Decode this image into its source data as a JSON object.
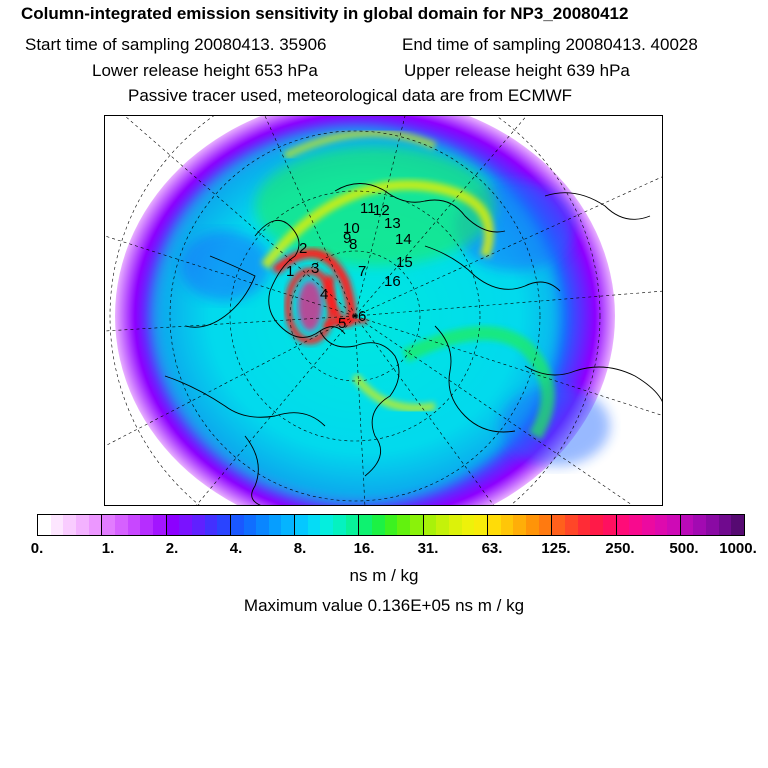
{
  "header": {
    "title": "Column-integrated emission sensitivity in global domain for NP3_20080412",
    "start_time": "Start time of sampling 20080413. 35906",
    "end_time": "End time of sampling 20080413. 40028",
    "lower_height": "Lower release height  653 hPa",
    "upper_height": "Upper release height  639 hPa",
    "tracer_note": "Passive tracer used, meteorological data are from ECMWF"
  },
  "map": {
    "trajectory_labels": [
      "1",
      "2",
      "3",
      "4",
      "5",
      "6",
      "7",
      "8",
      "9",
      "10",
      "11",
      "12",
      "13",
      "14",
      "15",
      "16"
    ],
    "field_colors": {
      "background": "#00e8e0",
      "outer": "#7a00ff",
      "blue": "#1a66ff",
      "green": "#22ee55",
      "yellow": "#e8f000",
      "red": "#ff1a1a"
    }
  },
  "colorbar": {
    "colors": [
      "#ffffff",
      "#fde6ff",
      "#f9ccff",
      "#f3b2ff",
      "#ec97ff",
      "#e27cff",
      "#d661ff",
      "#c847ff",
      "#b62dff",
      "#a315ff",
      "#8c00ff",
      "#7a12ff",
      "#6020ff",
      "#4330ff",
      "#2a44ff",
      "#1a58ff",
      "#106eff",
      "#0a86ff",
      "#069eff",
      "#05b4ff",
      "#05c8ff",
      "#05dcf6",
      "#05eede",
      "#05f2c0",
      "#08f29a",
      "#0ef270",
      "#1cf244",
      "#3cf220",
      "#62f20e",
      "#8af20a",
      "#a8f20a",
      "#c4f20a",
      "#dcf20a",
      "#eef20a",
      "#f8ec0a",
      "#ffdc08",
      "#ffc608",
      "#ffae08",
      "#ff9408",
      "#ff7a10",
      "#ff601c",
      "#ff4628",
      "#ff2c36",
      "#ff1a48",
      "#ff1060",
      "#ff0c78",
      "#f80a8e",
      "#ec0aa0",
      "#de0aae",
      "#ce0ab6",
      "#ba0ab8",
      "#a20ab2",
      "#8a0aa4",
      "#700a8e",
      "#560a72"
    ],
    "ticks": [
      "0.",
      "1.",
      "2.",
      "4.",
      "8.",
      "16.",
      "31.",
      "63.",
      "125.",
      "250.",
      "500.",
      "1000."
    ],
    "units": "ns m / kg"
  },
  "max_value": "Maximum value  0.136E+05 ns m / kg"
}
